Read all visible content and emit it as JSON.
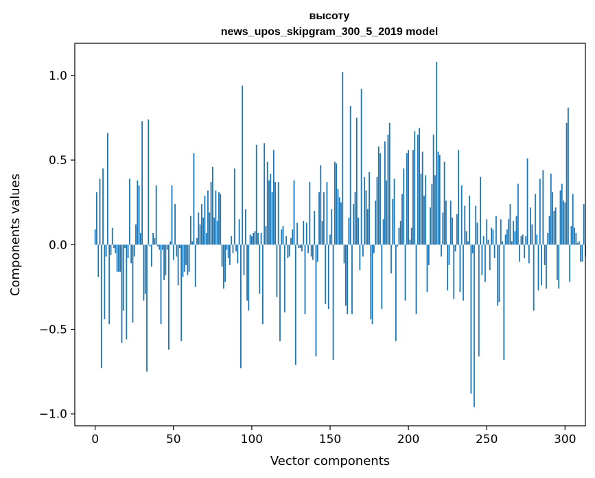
{
  "chart_data": {
    "type": "bar",
    "title_line1": "высоту",
    "title_line2": "news_upos_skipgram_300_5_2019 model",
    "xlabel": "Vector components",
    "ylabel": "Components values",
    "xlim": [
      -13,
      313
    ],
    "ylim": [
      -1.07,
      1.19
    ],
    "xticks": [
      0,
      50,
      100,
      150,
      200,
      250,
      300
    ],
    "xtick_labels": [
      "0",
      "50",
      "100",
      "150",
      "200",
      "250",
      "300"
    ],
    "yticks": [
      -1.0,
      -0.5,
      0.0,
      0.5,
      1.0
    ],
    "ytick_labels": [
      "−1.0",
      "−0.5",
      "0.0",
      "0.5",
      "1.0"
    ],
    "bar_color": "#1f77b4",
    "grid": false,
    "values": [
      0.09,
      0.31,
      -0.19,
      0.39,
      -0.73,
      0.45,
      -0.44,
      -0.07,
      0.66,
      -0.47,
      -0.06,
      0.1,
      -0.02,
      -0.05,
      -0.16,
      -0.16,
      -0.16,
      -0.58,
      -0.39,
      -0.02,
      -0.56,
      -0.08,
      0.39,
      -0.11,
      -0.46,
      -0.07,
      0.12,
      0.38,
      0.35,
      0.07,
      0.73,
      -0.33,
      -0.29,
      -0.75,
      0.74,
      -0.01,
      -0.13,
      0.07,
      0.04,
      0.35,
      -0.01,
      -0.03,
      -0.47,
      -0.03,
      -0.21,
      -0.18,
      -0.03,
      -0.62,
      0.02,
      0.35,
      -0.09,
      0.24,
      -0.07,
      -0.24,
      -0.02,
      -0.57,
      -0.19,
      -0.16,
      -0.12,
      -0.18,
      -0.16,
      0.17,
      0.02,
      0.54,
      -0.25,
      0.04,
      0.19,
      0.12,
      0.24,
      0.16,
      0.29,
      0.07,
      0.32,
      0.19,
      0.37,
      0.46,
      0.16,
      0.32,
      0.14,
      0.31,
      0.3,
      -0.13,
      -0.26,
      -0.22,
      -0.03,
      -0.08,
      -0.12,
      0.05,
      -0.05,
      0.45,
      -0.04,
      -0.11,
      0.15,
      -0.73,
      0.94,
      -0.18,
      0.21,
      -0.33,
      -0.39,
      0.06,
      0.05,
      0.07,
      0.08,
      0.59,
      0.07,
      -0.29,
      0.07,
      -0.47,
      0.6,
      0.11,
      0.49,
      0.38,
      0.42,
      0.31,
      0.56,
      0.37,
      -0.31,
      0.37,
      -0.57,
      0.09,
      0.11,
      -0.4,
      0.05,
      -0.08,
      -0.07,
      0.04,
      0.09,
      0.38,
      -0.71,
      0.13,
      -0.02,
      -0.02,
      -0.04,
      0.14,
      -0.41,
      0.13,
      -0.05,
      0.37,
      -0.07,
      -0.09,
      0.2,
      -0.66,
      -0.1,
      0.31,
      0.47,
      0.14,
      0.31,
      -0.35,
      0.37,
      -0.38,
      0.06,
      0.21,
      -0.68,
      0.49,
      0.48,
      0.33,
      0.28,
      0.25,
      1.02,
      -0.11,
      -0.36,
      -0.41,
      0.16,
      0.82,
      -0.41,
      0.24,
      0.31,
      0.75,
      0.16,
      -0.15,
      0.92,
      -0.07,
      0.4,
      0.32,
      0.21,
      0.43,
      -0.44,
      -0.47,
      -0.05,
      0.26,
      0.4,
      0.58,
      0.54,
      -0.38,
      0.15,
      0.61,
      0.38,
      0.65,
      0.72,
      -0.17,
      0.27,
      0.39,
      -0.57,
      -0.01,
      0.1,
      0.14,
      0.3,
      0.45,
      -0.33,
      0.54,
      0.56,
      0.03,
      0.1,
      0.56,
      0.67,
      -0.41,
      0.65,
      0.69,
      0.42,
      0.55,
      0.29,
      0.41,
      -0.28,
      -0.12,
      0.22,
      0.36,
      0.65,
      0.41,
      1.08,
      0.55,
      0.53,
      -0.07,
      0.19,
      0.49,
      0.26,
      -0.27,
      -0.12,
      0.26,
      0.16,
      -0.32,
      -0.04,
      0.18,
      0.56,
      -0.28,
      0.35,
      -0.33,
      0.23,
      0.08,
      0.02,
      0.29,
      -0.88,
      -0.05,
      -0.96,
      0.23,
      0.13,
      -0.66,
      0.4,
      -0.18,
      0.05,
      -0.22,
      0.15,
      0.03,
      -0.15,
      0.1,
      0.09,
      -0.08,
      0.17,
      -0.36,
      -0.34,
      0.15,
      0.02,
      -0.68,
      0.06,
      0.09,
      0.15,
      0.24,
      0.02,
      0.14,
      0.08,
      0.17,
      0.36,
      -0.1,
      0.05,
      0.06,
      -0.08,
      0.05,
      0.51,
      -0.11,
      0.22,
      0.12,
      -0.39,
      0.3,
      0.06,
      -0.27,
      0.39,
      -0.24,
      0.44,
      -0.12,
      -0.26,
      0.07,
      0.17,
      0.42,
      0.31,
      0.2,
      0.22,
      -0.21,
      -0.26,
      0.32,
      0.36,
      0.26,
      0.25,
      0.72,
      0.81,
      -0.22,
      0.11,
      0.3,
      0.1,
      0.07,
      0.01,
      0.02,
      -0.1,
      -0.1,
      0.24,
      -0.07
    ]
  }
}
